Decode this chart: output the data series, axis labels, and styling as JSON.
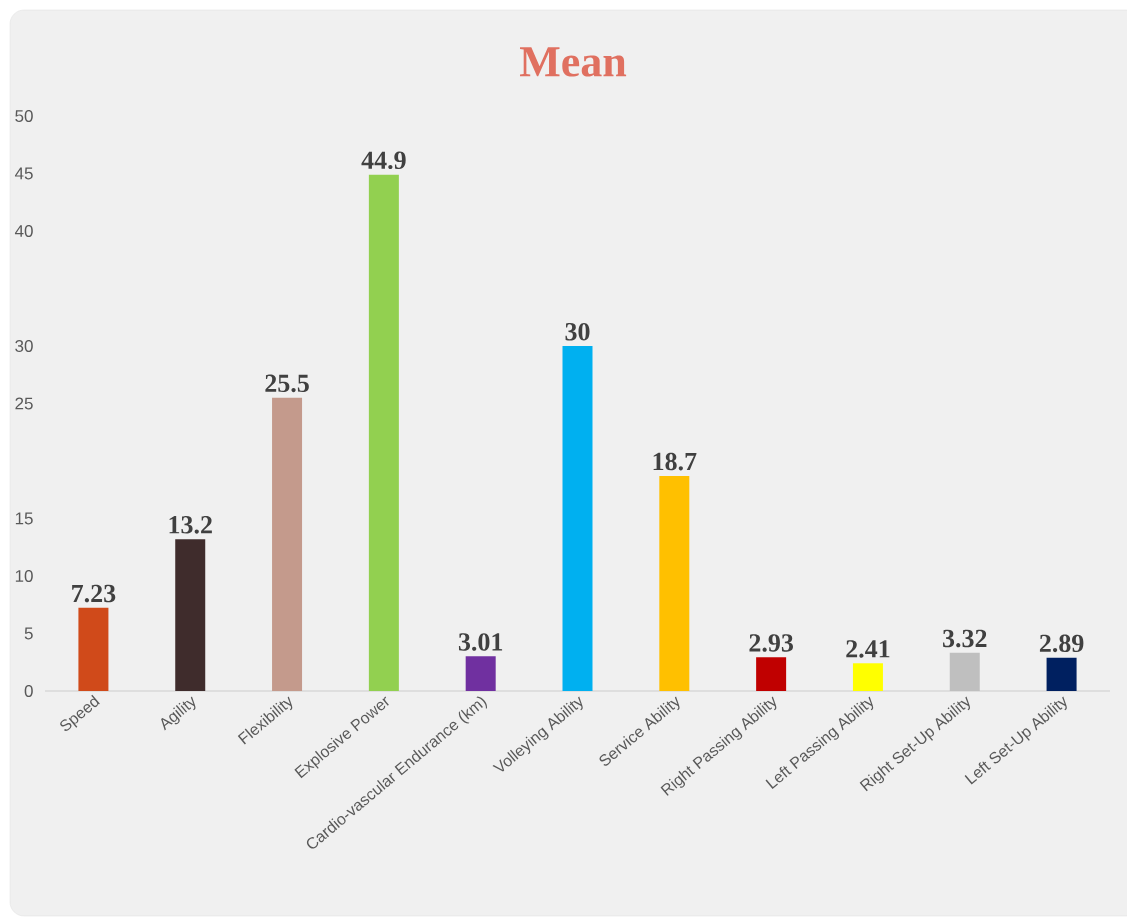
{
  "chart_data": {
    "type": "bar",
    "title": "Mean",
    "categories": [
      "Speed",
      "Agility",
      "Flexibility",
      "Explosive Power",
      "Cardio-vascular Endurance (km)",
      "Volleying Ability",
      "Service Ability",
      "Right Passing Ability",
      "Left Passing Ability",
      "Right Set-Up Ability",
      "Left Set-Up Ability"
    ],
    "values": [
      7.23,
      13.2,
      25.5,
      44.9,
      3.01,
      30,
      18.7,
      2.93,
      2.41,
      3.32,
      2.89
    ],
    "colors": [
      "#d04a1a",
      "#3f2c2c",
      "#c49a8c",
      "#92d050",
      "#7030a0",
      "#00b0f0",
      "#ffc000",
      "#c00000",
      "#ffff00",
      "#bfbfbf",
      "#002060"
    ],
    "ylim": [
      0,
      50
    ],
    "yticks": [
      0,
      5,
      10,
      15,
      25,
      30,
      40,
      45,
      50
    ],
    "data_labels": true
  }
}
